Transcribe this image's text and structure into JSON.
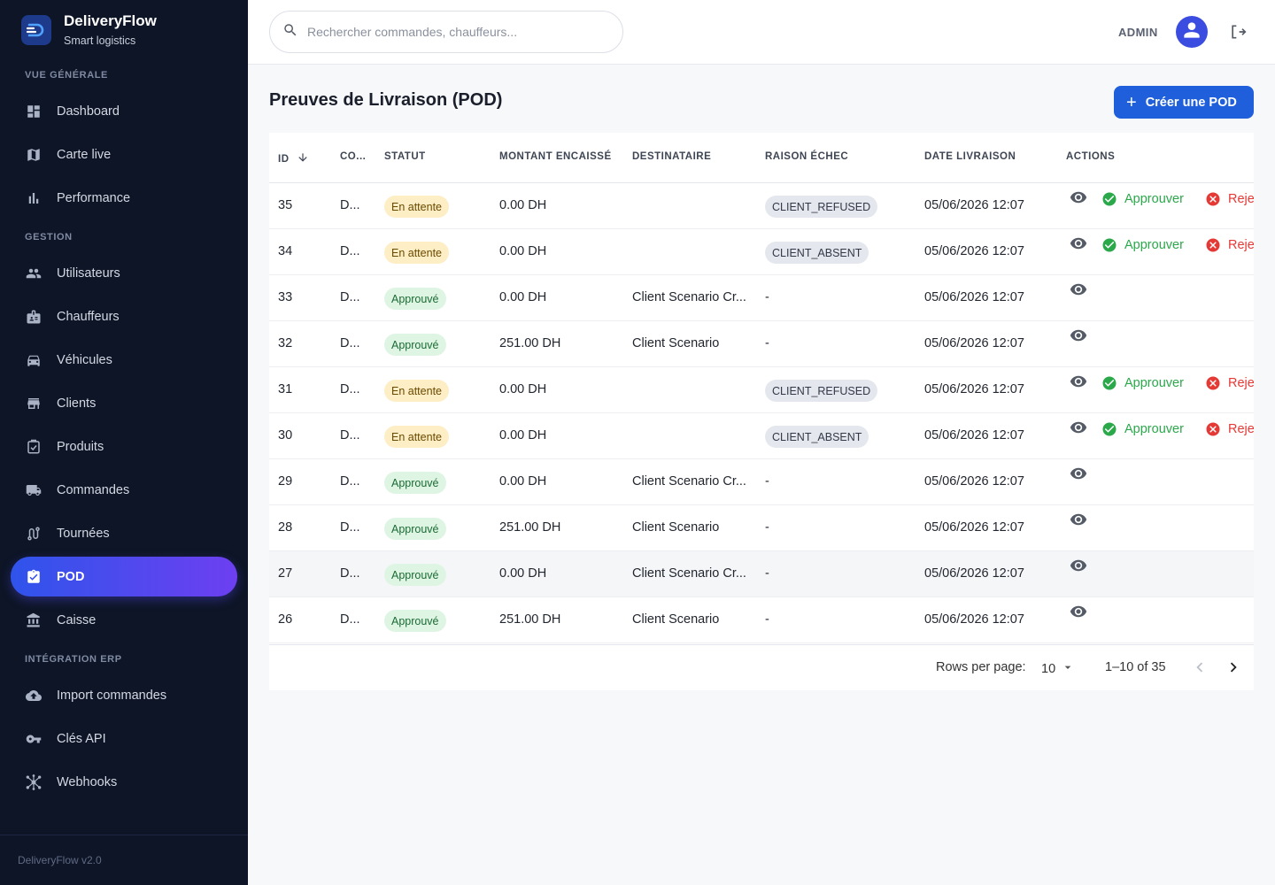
{
  "brand": {
    "name": "DeliveryFlow",
    "subtitle": "Smart logistics"
  },
  "sidebar": {
    "sections": [
      {
        "label": "VUE GÉNÉRALE"
      },
      {
        "label": "GESTION"
      },
      {
        "label": "INTÉGRATION ERP"
      }
    ],
    "items": [
      {
        "label": "Dashboard",
        "icon": "dashboard-icon"
      },
      {
        "label": "Carte live",
        "icon": "map-icon"
      },
      {
        "label": "Performance",
        "icon": "bar-chart-icon"
      },
      {
        "label": "Utilisateurs",
        "icon": "users-icon"
      },
      {
        "label": "Chauffeurs",
        "icon": "badge-icon"
      },
      {
        "label": "Véhicules",
        "icon": "car-icon"
      },
      {
        "label": "Clients",
        "icon": "store-icon"
      },
      {
        "label": "Produits",
        "icon": "inventory-icon"
      },
      {
        "label": "Commandes",
        "icon": "truck-icon"
      },
      {
        "label": "Tournées",
        "icon": "route-icon"
      },
      {
        "label": "POD",
        "icon": "assignment-check-icon",
        "active": true
      },
      {
        "label": "Caisse",
        "icon": "bank-icon"
      },
      {
        "label": "Import commandes",
        "icon": "cloud-upload-icon"
      },
      {
        "label": "Clés API",
        "icon": "key-icon"
      },
      {
        "label": "Webhooks",
        "icon": "webhook-icon"
      }
    ],
    "footer": "DeliveryFlow v2.0"
  },
  "topbar": {
    "search_placeholder": "Rechercher commandes, chauffeurs...",
    "user_role": "ADMIN"
  },
  "main": {
    "title": "Preuves de Livraison (POD)",
    "create_button": "Créer une POD",
    "columns": {
      "id": "ID",
      "commande": "CO...",
      "statut": "STATUT",
      "montant": "MONTANT ENCAISSÉ",
      "destinataire": "DESTINATAIRE",
      "raison": "RAISON ÉCHEC",
      "date": "DATE LIVRAISON",
      "actions": "ACTIONS"
    },
    "approve_label": "Approuver",
    "reject_label": "Reje",
    "rows": [
      {
        "id": "35",
        "commande": "D...",
        "statut": "En attente",
        "statut_type": "pending",
        "montant": "0.00 DH",
        "destinataire": "",
        "raison": "CLIENT_REFUSED",
        "date": "05/06/2026 12:07"
      },
      {
        "id": "34",
        "commande": "D...",
        "statut": "En attente",
        "statut_type": "pending",
        "montant": "0.00 DH",
        "destinataire": "",
        "raison": "CLIENT_ABSENT",
        "date": "05/06/2026 12:07"
      },
      {
        "id": "33",
        "commande": "D...",
        "statut": "Approuvé",
        "statut_type": "approved",
        "montant": "0.00 DH",
        "destinataire": "Client Scenario Cr...",
        "raison": "-",
        "date": "05/06/2026 12:07"
      },
      {
        "id": "32",
        "commande": "D...",
        "statut": "Approuvé",
        "statut_type": "approved",
        "montant": "251.00 DH",
        "destinataire": "Client Scenario",
        "raison": "-",
        "date": "05/06/2026 12:07"
      },
      {
        "id": "31",
        "commande": "D...",
        "statut": "En attente",
        "statut_type": "pending",
        "montant": "0.00 DH",
        "destinataire": "",
        "raison": "CLIENT_REFUSED",
        "date": "05/06/2026 12:07"
      },
      {
        "id": "30",
        "commande": "D...",
        "statut": "En attente",
        "statut_type": "pending",
        "montant": "0.00 DH",
        "destinataire": "",
        "raison": "CLIENT_ABSENT",
        "date": "05/06/2026 12:07"
      },
      {
        "id": "29",
        "commande": "D...",
        "statut": "Approuvé",
        "statut_type": "approved",
        "montant": "0.00 DH",
        "destinataire": "Client Scenario Cr...",
        "raison": "-",
        "date": "05/06/2026 12:07"
      },
      {
        "id": "28",
        "commande": "D...",
        "statut": "Approuvé",
        "statut_type": "approved",
        "montant": "251.00 DH",
        "destinataire": "Client Scenario",
        "raison": "-",
        "date": "05/06/2026 12:07"
      },
      {
        "id": "27",
        "commande": "D...",
        "statut": "Approuvé",
        "statut_type": "approved",
        "montant": "0.00 DH",
        "destinataire": "Client Scenario Cr...",
        "raison": "-",
        "date": "05/06/2026 12:07"
      },
      {
        "id": "26",
        "commande": "D...",
        "statut": "Approuvé",
        "statut_type": "approved",
        "montant": "251.00 DH",
        "destinataire": "Client Scenario",
        "raison": "-",
        "date": "05/06/2026 12:07"
      }
    ],
    "pagination": {
      "rows_per_page_label": "Rows per page:",
      "rows_per_page_value": "10",
      "range": "1–10 of 35"
    }
  },
  "colors": {
    "sidebar_bg": "#0d1526",
    "accent": "#1f5fdc",
    "active_gradient_start": "#2f54eb",
    "active_gradient_end": "#6d3ff0",
    "approve": "#2aa84a",
    "reject": "#e53935",
    "pending_chip": "#fdeec6",
    "approved_chip": "#dff5e4"
  }
}
